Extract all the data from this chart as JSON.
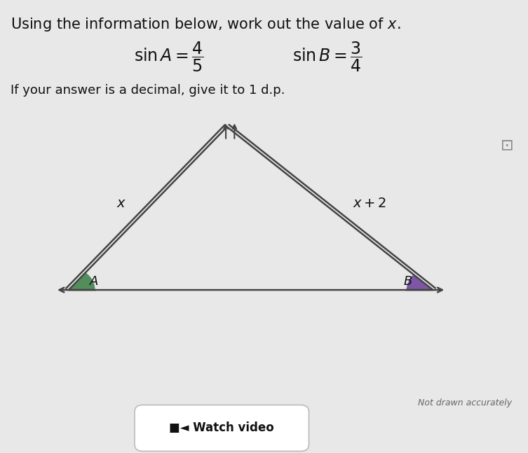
{
  "title": "Using the information below, work out the value of $x$.",
  "decimal_note": "If your answer is a decimal, give it to 1 d.p.",
  "not_drawn_text": "Not drawn accurately",
  "watch_video_text": "■◄ Watch video",
  "background_color": "#e8e8e8",
  "triangle": {
    "A": [
      0.13,
      0.36
    ],
    "B": [
      0.82,
      0.36
    ],
    "C": [
      0.43,
      0.72
    ]
  },
  "label_x": "$x$",
  "label_x2": "$x+2$",
  "label_A": "$A$",
  "label_B": "$B$",
  "angle_A_color": "#3a7d44",
  "angle_B_color": "#6a3d9a",
  "line_color": "#444444",
  "text_color": "#111111",
  "font_size_title": 15,
  "font_size_labels": 13,
  "font_size_small": 9
}
